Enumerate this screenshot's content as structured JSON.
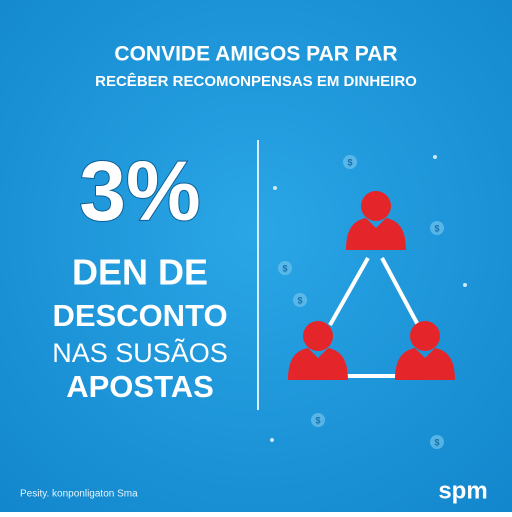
{
  "header": {
    "title": "CONVIDE AMIGOS PAR PAR",
    "subtitle": "RECÊBER RECOMONPENSAS EM DINHEIRO"
  },
  "offer": {
    "headline": "3%",
    "lines": [
      "DEN DE",
      "DESCONTO",
      "NAS SUSÃOS",
      "APOSTAS"
    ]
  },
  "footer": {
    "note": "Pesity. konponligaton Sma",
    "logo": "spm"
  }
}
